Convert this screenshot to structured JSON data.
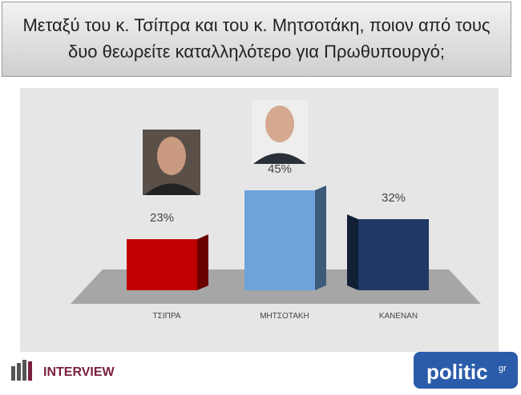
{
  "chart_data": {
    "type": "bar3d",
    "title": "Μεταξύ του κ. Τσίπρα και του κ. Μητσοτάκη, ποιον από τους δυο θεωρείτε καταλληλότερο για Πρωθυπουργό;",
    "categories": [
      "ΤΣΙΠΡΑ",
      "ΜΗΤΣΟΤΑΚΗ",
      "ΚΑΝΕΝΑΝ"
    ],
    "values": [
      23,
      45,
      32
    ],
    "value_labels": [
      "23%",
      "45%",
      "32%"
    ],
    "colors": [
      "#c00000",
      "#6fa3dc",
      "#1f3864"
    ]
  },
  "logos": {
    "left": "INTERVIEW",
    "right": "politic",
    "right_suffix": "gr"
  }
}
